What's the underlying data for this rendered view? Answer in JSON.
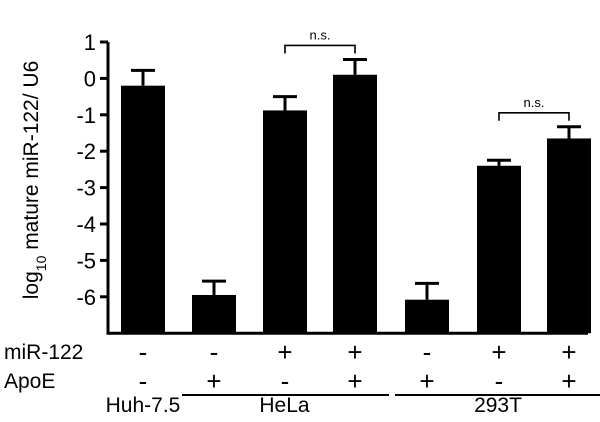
{
  "chart_data": {
    "type": "bar",
    "ylabel_main": "log",
    "ylabel_sub": "10",
    "ylabel_rest": " mature miR-122/ U6",
    "ylim": [
      -7,
      1
    ],
    "yticks": [
      1,
      0,
      -1,
      -2,
      -3,
      -4,
      -5,
      -6
    ],
    "ytick_labels": [
      "1",
      "0",
      "-1",
      "-2",
      "-3",
      "-4",
      "-5",
      "-6"
    ],
    "categories": [
      "1",
      "2",
      "3",
      "4",
      "5",
      "6",
      "7",
      "8"
    ],
    "values": [
      -0.2,
      -5.95,
      -0.88,
      0.1,
      -6.08,
      -2.4,
      -1.65,
      null
    ],
    "errors": [
      0.42,
      0.38,
      0.38,
      0.42,
      0.45,
      0.15,
      0.32,
      0
    ],
    "bar_color": "#000000",
    "condition_rows": [
      {
        "label": "miR-122",
        "signs": [
          "-",
          "-",
          "+",
          "+",
          "-",
          "+",
          "+"
        ]
      },
      {
        "label": "ApoE",
        "signs": [
          "-",
          "+",
          "-",
          "+",
          "+",
          "-",
          "+"
        ]
      }
    ],
    "groups": [
      {
        "label": "Huh-7.5",
        "start": 0,
        "end": 0
      },
      {
        "label": "HeLa",
        "start": 1,
        "end": 3
      },
      {
        "label": "293T",
        "start": 4,
        "end": 6
      }
    ],
    "annotations": [
      {
        "label": "n.s.",
        "from": 2,
        "to": 3
      },
      {
        "label": "n.s.",
        "from": 5,
        "to": 6
      }
    ]
  }
}
